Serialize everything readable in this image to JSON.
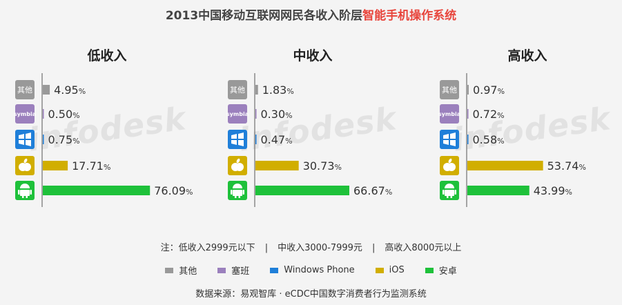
{
  "title": {
    "main": "2013中国移动互联网网民各收入阶层",
    "highlight": "智能手机操作系统"
  },
  "watermark": "infodesk",
  "platform_labels": {
    "other": "其他",
    "symbian": "symbia"
  },
  "note": {
    "prefix": "注：",
    "low": "低收入2999元以下",
    "sep": "|",
    "mid": "中收入3000-7999元",
    "high": "高收入8000元以上"
  },
  "legend": [
    {
      "label": "其他",
      "color": "#999999"
    },
    {
      "label": "塞班",
      "color": "#9b80bd"
    },
    {
      "label": "Windows Phone",
      "color": "#1f7fd9"
    },
    {
      "label": "iOS",
      "color": "#d1ae00"
    },
    {
      "label": "安卓",
      "color": "#1ec13a"
    }
  ],
  "source": "数据来源：易观智库 · eCDC中国数字消费者行为监测系统",
  "chart_data": [
    {
      "type": "bar",
      "title": "低收入",
      "categories": [
        "其他",
        "塞班",
        "Windows Phone",
        "iOS",
        "安卓"
      ],
      "values": [
        4.95,
        0.5,
        0.75,
        17.71,
        76.09
      ],
      "value_labels": [
        "4.95",
        "0.50",
        "0.75",
        "17.71",
        "76.09"
      ],
      "unit": "%",
      "orientation": "horizontal"
    },
    {
      "type": "bar",
      "title": "中收入",
      "categories": [
        "其他",
        "塞班",
        "Windows Phone",
        "iOS",
        "安卓"
      ],
      "values": [
        1.83,
        0.3,
        0.47,
        30.73,
        66.67
      ],
      "value_labels": [
        "1.83",
        "0.30",
        "0.47",
        "30.73",
        "66.67"
      ],
      "unit": "%",
      "orientation": "horizontal"
    },
    {
      "type": "bar",
      "title": "高收入",
      "categories": [
        "其他",
        "塞班",
        "Windows Phone",
        "iOS",
        "安卓"
      ],
      "values": [
        0.97,
        0.72,
        0.58,
        53.74,
        43.99
      ],
      "value_labels": [
        "0.97",
        "0.72",
        "0.58",
        "53.74",
        "43.99"
      ],
      "unit": "%",
      "orientation": "horizontal"
    }
  ]
}
